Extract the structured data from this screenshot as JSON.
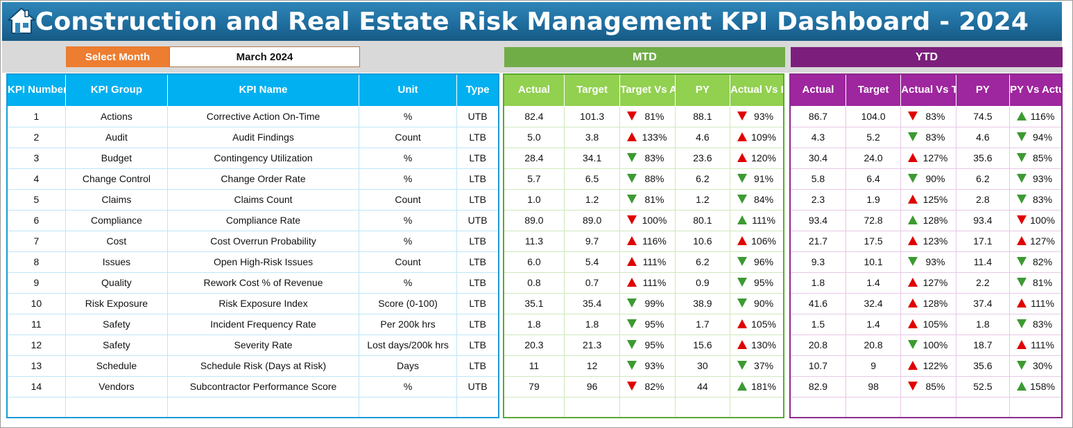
{
  "header": {
    "title": "Construction and Real Estate Risk Management KPI Dashboard - 2024",
    "home_icon": "home-icon"
  },
  "selector": {
    "label": "Select Month",
    "value": "March 2024"
  },
  "sections": {
    "mtd": "MTD",
    "ytd": "YTD"
  },
  "colors": {
    "title_bg": "#1f6e9f",
    "select_label_bg": "#ed7d31",
    "kpi_header_bg": "#00b0f0",
    "mtd_band_bg": "#70ad47",
    "mtd_header_bg": "#92d050",
    "ytd_band_bg": "#7c1f7c",
    "ytd_header_bg": "#9e269e",
    "arrow_red": "#e00000",
    "arrow_green": "#3c9a32"
  },
  "kpi_columns": [
    "KPI Number",
    "KPI Group",
    "KPI Name",
    "Unit",
    "Type"
  ],
  "mtd_columns": [
    "Actual",
    "Target",
    "Target Vs Actual",
    "PY",
    "Actual Vs PY"
  ],
  "ytd_columns": [
    "Actual",
    "Target",
    "Actual Vs Target",
    "PY",
    "PY Vs Actual"
  ],
  "rows": [
    {
      "num": "1",
      "group": "Actions",
      "name": "Corrective Action On-Time",
      "unit": "%",
      "type": "UTB",
      "mtd": {
        "actual": "82.4",
        "target": "101.3",
        "tva": "81%",
        "tva_arrow": "down-red",
        "py": "88.1",
        "avp": "93%",
        "avp_arrow": "down-red"
      },
      "ytd": {
        "actual": "86.7",
        "target": "104.0",
        "avt": "83%",
        "avt_arrow": "down-red",
        "py": "74.5",
        "pva": "116%",
        "pva_arrow": "up-green"
      }
    },
    {
      "num": "2",
      "group": "Audit",
      "name": "Audit Findings",
      "unit": "Count",
      "type": "LTB",
      "mtd": {
        "actual": "5.0",
        "target": "3.8",
        "tva": "133%",
        "tva_arrow": "up-red",
        "py": "4.6",
        "avp": "109%",
        "avp_arrow": "up-red"
      },
      "ytd": {
        "actual": "4.3",
        "target": "5.2",
        "avt": "83%",
        "avt_arrow": "down-green",
        "py": "4.6",
        "pva": "94%",
        "pva_arrow": "down-green"
      }
    },
    {
      "num": "3",
      "group": "Budget",
      "name": "Contingency Utilization",
      "unit": "%",
      "type": "LTB",
      "mtd": {
        "actual": "28.4",
        "target": "34.1",
        "tva": "83%",
        "tva_arrow": "down-green",
        "py": "23.6",
        "avp": "120%",
        "avp_arrow": "up-red"
      },
      "ytd": {
        "actual": "30.4",
        "target": "24.0",
        "avt": "127%",
        "avt_arrow": "up-red",
        "py": "35.6",
        "pva": "85%",
        "pva_arrow": "down-green"
      }
    },
    {
      "num": "4",
      "group": "Change Control",
      "name": "Change Order Rate",
      "unit": "%",
      "type": "LTB",
      "mtd": {
        "actual": "5.7",
        "target": "6.5",
        "tva": "88%",
        "tva_arrow": "down-green",
        "py": "6.2",
        "avp": "91%",
        "avp_arrow": "down-green"
      },
      "ytd": {
        "actual": "5.8",
        "target": "6.4",
        "avt": "90%",
        "avt_arrow": "down-green",
        "py": "6.2",
        "pva": "93%",
        "pva_arrow": "down-green"
      }
    },
    {
      "num": "5",
      "group": "Claims",
      "name": "Claims Count",
      "unit": "Count",
      "type": "LTB",
      "mtd": {
        "actual": "1.0",
        "target": "1.2",
        "tva": "81%",
        "tva_arrow": "down-green",
        "py": "1.2",
        "avp": "84%",
        "avp_arrow": "down-green"
      },
      "ytd": {
        "actual": "2.3",
        "target": "1.9",
        "avt": "125%",
        "avt_arrow": "up-red",
        "py": "2.8",
        "pva": "83%",
        "pva_arrow": "down-green"
      }
    },
    {
      "num": "6",
      "group": "Compliance",
      "name": "Compliance Rate",
      "unit": "%",
      "type": "UTB",
      "mtd": {
        "actual": "89.0",
        "target": "89.0",
        "tva": "100%",
        "tva_arrow": "down-red",
        "py": "80.1",
        "avp": "111%",
        "avp_arrow": "up-green"
      },
      "ytd": {
        "actual": "93.4",
        "target": "72.8",
        "avt": "128%",
        "avt_arrow": "up-green",
        "py": "93.4",
        "pva": "100%",
        "pva_arrow": "down-red"
      }
    },
    {
      "num": "7",
      "group": "Cost",
      "name": "Cost Overrun Probability",
      "unit": "%",
      "type": "LTB",
      "mtd": {
        "actual": "11.3",
        "target": "9.7",
        "tva": "116%",
        "tva_arrow": "up-red",
        "py": "10.6",
        "avp": "106%",
        "avp_arrow": "up-red"
      },
      "ytd": {
        "actual": "21.7",
        "target": "17.5",
        "avt": "123%",
        "avt_arrow": "up-red",
        "py": "17.1",
        "pva": "127%",
        "pva_arrow": "up-red"
      }
    },
    {
      "num": "8",
      "group": "Issues",
      "name": "Open High-Risk Issues",
      "unit": "Count",
      "type": "LTB",
      "mtd": {
        "actual": "6.0",
        "target": "5.4",
        "tva": "111%",
        "tva_arrow": "up-red",
        "py": "6.2",
        "avp": "96%",
        "avp_arrow": "down-green"
      },
      "ytd": {
        "actual": "9.3",
        "target": "10.1",
        "avt": "93%",
        "avt_arrow": "down-green",
        "py": "11.4",
        "pva": "82%",
        "pva_arrow": "down-green"
      }
    },
    {
      "num": "9",
      "group": "Quality",
      "name": "Rework Cost % of Revenue",
      "unit": "%",
      "type": "LTB",
      "mtd": {
        "actual": "0.8",
        "target": "0.7",
        "tva": "111%",
        "tva_arrow": "up-red",
        "py": "0.9",
        "avp": "95%",
        "avp_arrow": "down-green"
      },
      "ytd": {
        "actual": "1.8",
        "target": "1.4",
        "avt": "127%",
        "avt_arrow": "up-red",
        "py": "2.2",
        "pva": "81%",
        "pva_arrow": "down-green"
      }
    },
    {
      "num": "10",
      "group": "Risk Exposure",
      "name": "Risk Exposure Index",
      "unit": "Score (0-100)",
      "type": "LTB",
      "mtd": {
        "actual": "35.1",
        "target": "35.4",
        "tva": "99%",
        "tva_arrow": "down-green",
        "py": "38.9",
        "avp": "90%",
        "avp_arrow": "down-green"
      },
      "ytd": {
        "actual": "41.6",
        "target": "32.4",
        "avt": "128%",
        "avt_arrow": "up-red",
        "py": "37.4",
        "pva": "111%",
        "pva_arrow": "up-red"
      }
    },
    {
      "num": "11",
      "group": "Safety",
      "name": "Incident Frequency Rate",
      "unit": "Per 200k hrs",
      "type": "LTB",
      "mtd": {
        "actual": "1.8",
        "target": "1.8",
        "tva": "95%",
        "tva_arrow": "down-green",
        "py": "1.7",
        "avp": "105%",
        "avp_arrow": "up-red"
      },
      "ytd": {
        "actual": "1.5",
        "target": "1.4",
        "avt": "105%",
        "avt_arrow": "up-red",
        "py": "1.8",
        "pva": "83%",
        "pva_arrow": "down-green"
      }
    },
    {
      "num": "12",
      "group": "Safety",
      "name": "Severity Rate",
      "unit": "Lost days/200k hrs",
      "type": "LTB",
      "mtd": {
        "actual": "20.3",
        "target": "21.3",
        "tva": "95%",
        "tva_arrow": "down-green",
        "py": "15.6",
        "avp": "130%",
        "avp_arrow": "up-red"
      },
      "ytd": {
        "actual": "20.8",
        "target": "20.8",
        "avt": "100%",
        "avt_arrow": "down-green",
        "py": "18.7",
        "pva": "111%",
        "pva_arrow": "up-red"
      }
    },
    {
      "num": "13",
      "group": "Schedule",
      "name": "Schedule Risk (Days at Risk)",
      "unit": "Days",
      "type": "LTB",
      "mtd": {
        "actual": "11",
        "target": "12",
        "tva": "93%",
        "tva_arrow": "down-green",
        "py": "30",
        "avp": "37%",
        "avp_arrow": "down-green"
      },
      "ytd": {
        "actual": "10.7",
        "target": "9",
        "avt": "122%",
        "avt_arrow": "up-red",
        "py": "35.6",
        "pva": "30%",
        "pva_arrow": "down-green"
      }
    },
    {
      "num": "14",
      "group": "Vendors",
      "name": "Subcontractor Performance Score",
      "unit": "%",
      "type": "UTB",
      "mtd": {
        "actual": "79",
        "target": "96",
        "tva": "82%",
        "tva_arrow": "down-red",
        "py": "44",
        "avp": "181%",
        "avp_arrow": "up-green"
      },
      "ytd": {
        "actual": "82.9",
        "target": "98",
        "avt": "85%",
        "avt_arrow": "down-red",
        "py": "52.5",
        "pva": "158%",
        "pva_arrow": "up-green"
      }
    }
  ]
}
